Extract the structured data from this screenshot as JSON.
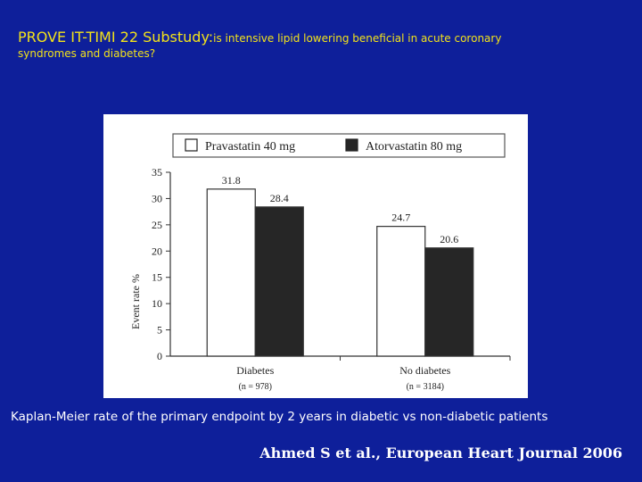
{
  "slide": {
    "title_main": "PROVE IT-TIMI 22 Substudy:",
    "title_question": "is intensive lipid lowering beneficial in acute coronary",
    "title_question_line2": "syndromes and diabetes?",
    "caption": "Kaplan-Meier rate of the primary endpoint by 2 years in diabetic vs non-diabetic patients",
    "citation": "Ahmed S et al., European Heart Journal 2006"
  },
  "chart_data": {
    "type": "bar",
    "categories": [
      "Diabetes",
      "No diabetes"
    ],
    "category_sublabels": [
      "(n = 978)",
      "(n = 3184)"
    ],
    "series": [
      {
        "name": "Pravastatin 40 mg",
        "values": [
          31.8,
          24.7
        ],
        "color": "#ffffff"
      },
      {
        "name": "Atorvastatin 80 mg",
        "values": [
          28.4,
          20.6
        ],
        "color": "#262626"
      }
    ],
    "data_labels": [
      [
        "31.8",
        "24.7"
      ],
      [
        "28.4",
        "20.6"
      ]
    ],
    "ylabel": "Event rate %",
    "ylim": [
      0,
      35
    ],
    "yticks": [
      0,
      5,
      10,
      15,
      20,
      25,
      30,
      35
    ],
    "legend_position": "top",
    "grid": false
  },
  "colors": {
    "background": "#0e1f9a",
    "title": "#f2e21a",
    "text": "#ffffff"
  }
}
